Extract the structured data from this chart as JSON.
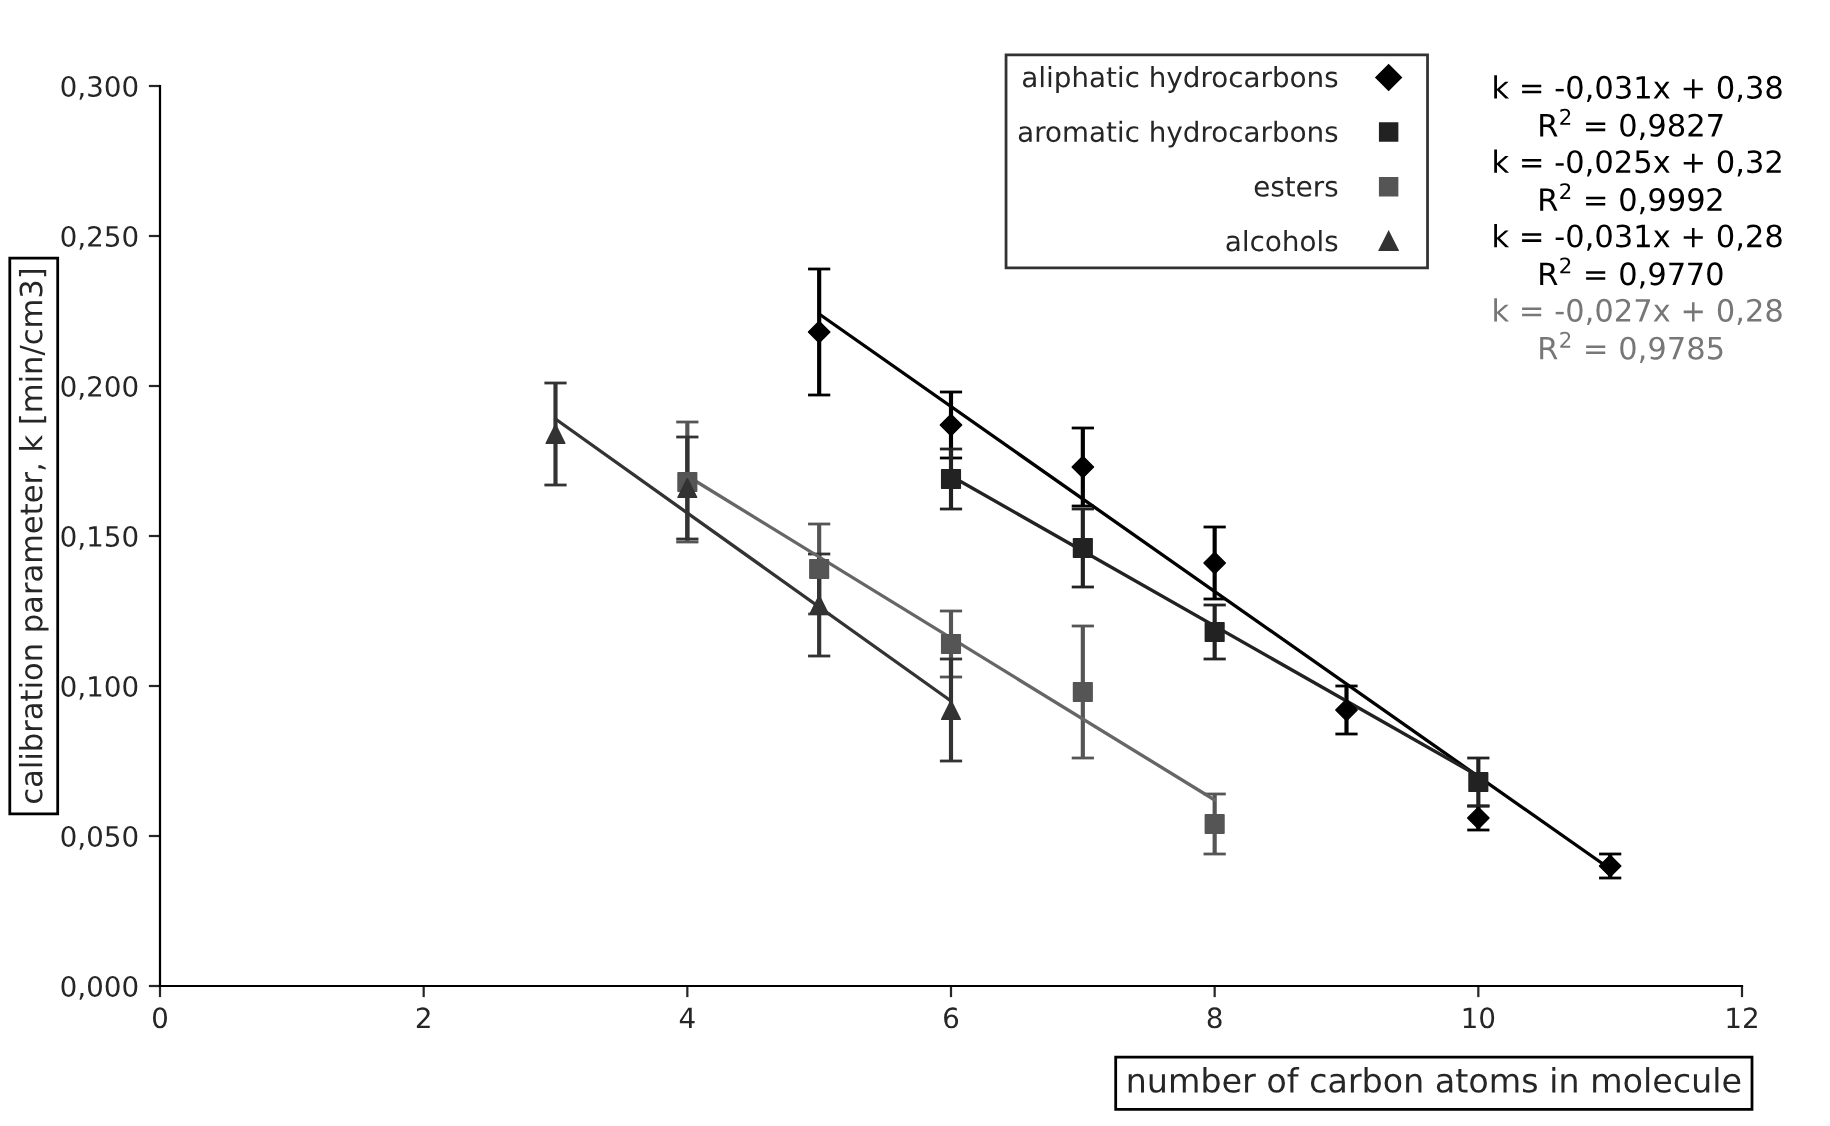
{
  "chart_data": {
    "type": "scatter",
    "xlabel": "number of carbon atoms in molecule",
    "ylabel": "calibration parameter, k [min/cm3]",
    "xlim": [
      0,
      12
    ],
    "xticks": [
      0,
      2,
      4,
      6,
      8,
      10,
      12
    ],
    "ylim": [
      0,
      0.3
    ],
    "yticks": [
      {
        "value": 0,
        "label": "0,000"
      },
      {
        "value": 0.05,
        "label": "0,050"
      },
      {
        "value": 0.1,
        "label": "0,100"
      },
      {
        "value": 0.15,
        "label": "0,150"
      },
      {
        "value": 0.2,
        "label": "0,200"
      },
      {
        "value": 0.25,
        "label": "0,250"
      },
      {
        "value": 0.3,
        "label": "0,300"
      }
    ],
    "grid": false,
    "legend": "top right",
    "series": [
      {
        "name": "aliphatic hydrocarbons",
        "marker": "diamond",
        "color": "#000000",
        "x": [
          5,
          6,
          7,
          8,
          9,
          10,
          11
        ],
        "values": [
          0.218,
          0.187,
          0.173,
          0.141,
          0.092,
          0.056,
          0.04
        ],
        "errors": [
          0.021,
          0.011,
          0.013,
          0.012,
          0.008,
          0.004,
          0.004
        ]
      },
      {
        "name": "aromatic hydrocarbons",
        "marker": "square",
        "color": "#222222",
        "x": [
          6,
          7,
          8,
          10
        ],
        "values": [
          0.169,
          0.146,
          0.118,
          0.068
        ],
        "errors": [
          0.01,
          0.013,
          0.009,
          0.008
        ]
      },
      {
        "name": "esters",
        "marker": "square",
        "color": "#555555",
        "x": [
          4,
          5,
          6,
          7,
          8
        ],
        "values": [
          0.168,
          0.139,
          0.114,
          0.098,
          0.054
        ],
        "errors": [
          0.02,
          0.015,
          0.011,
          0.022,
          0.01
        ]
      },
      {
        "name": "alcohols",
        "marker": "triangle",
        "color": "#333333",
        "x": [
          3,
          4,
          5,
          6
        ],
        "values": [
          0.184,
          0.166,
          0.127,
          0.092
        ],
        "errors": [
          0.017,
          0.017,
          0.017,
          0.017
        ]
      },
      {
        "type": "line",
        "marker": "none",
        "color": "#000000",
        "x": [
          5,
          11
        ],
        "values": [
          0.224,
          0.039
        ]
      },
      {
        "type": "line",
        "marker": "none",
        "color": "#222222",
        "x": [
          6,
          10
        ],
        "values": [
          0.17,
          0.07
        ]
      },
      {
        "type": "line",
        "marker": "none",
        "color": "#666666",
        "x": [
          4,
          8
        ],
        "values": [
          0.17,
          0.062
        ]
      },
      {
        "type": "line",
        "marker": "none",
        "color": "#333333",
        "x": [
          3,
          6
        ],
        "values": [
          0.189,
          0.095
        ]
      }
    ],
    "annotations": [
      "k = -0,031x + 0,38",
      "R$^{2}$ = 0,9827",
      "k = -0,025x + 0,32",
      "R$^{2}$ = 0,9992",
      "k = -0,031x + 0,28",
      "R$^{2}$ = 0,9770",
      "k = -0,027x + 0,28",
      "R$^{2}$ = 0,9785"
    ]
  }
}
